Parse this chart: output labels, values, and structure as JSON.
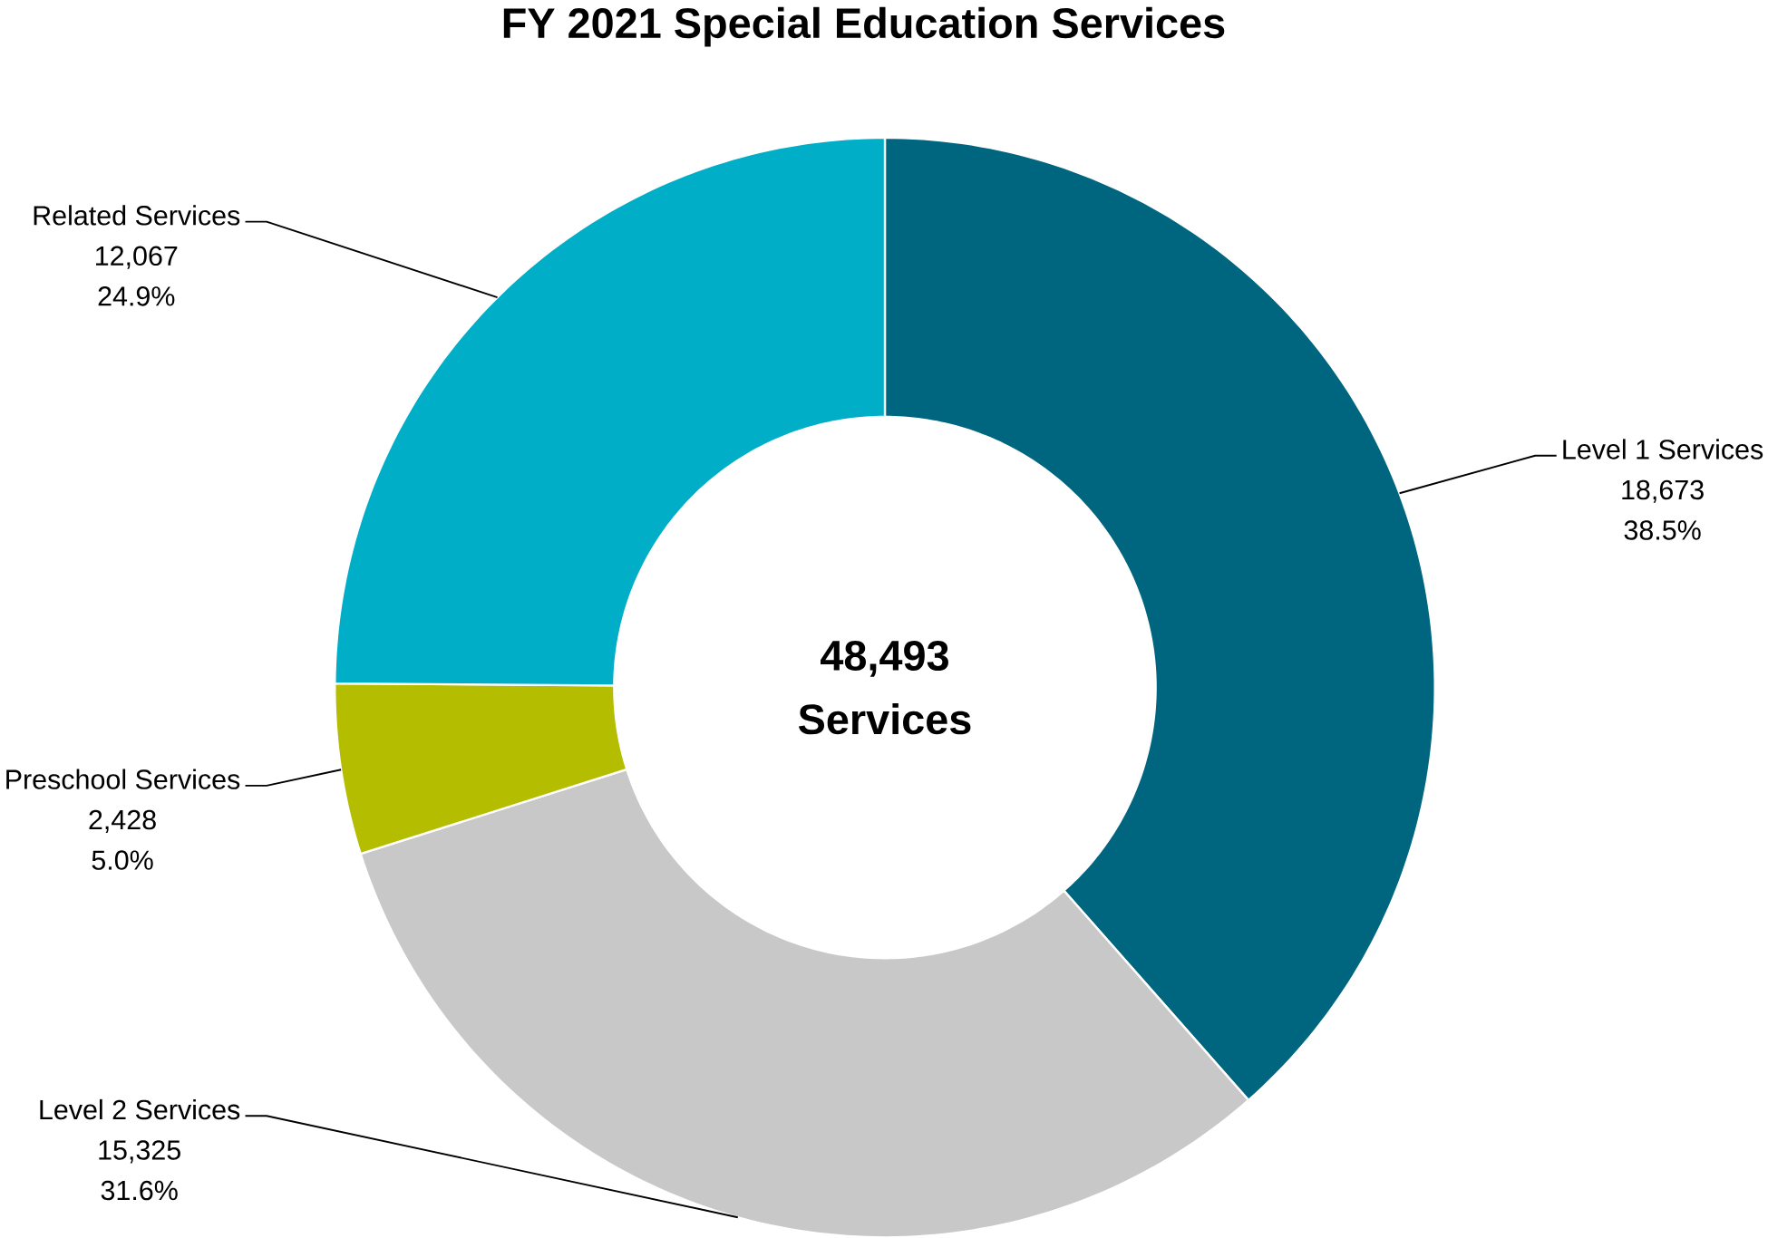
{
  "chart_data": {
    "type": "donut",
    "title": "FY 2021 Special Education Services",
    "categories": [
      "Level 1 Services",
      "Level 2 Services",
      "Preschool Services",
      "Related Services"
    ],
    "values": [
      18673,
      15325,
      2428,
      12067
    ],
    "value_labels": [
      "18,673",
      "15,325",
      "2,428",
      "12,067"
    ],
    "colors": [
      "#006680",
      "#c8c8c8",
      "#b5bd00",
      "#00aec7"
    ],
    "annotations": [
      "38.5%",
      "31.6%",
      "5.0%",
      "24.9%",
      "48,493",
      "Services"
    ]
  }
}
